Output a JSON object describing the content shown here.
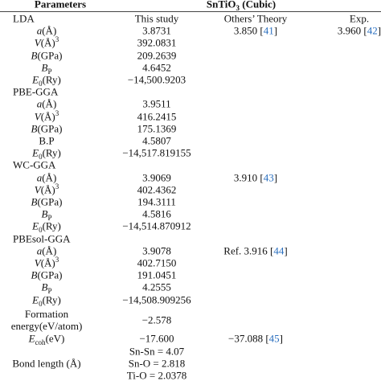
{
  "header": {
    "parameters": "Parameters",
    "compound": [
      {
        "text": "SnTiO"
      },
      {
        "text": "3",
        "format": "sub"
      },
      {
        "text": " (Cubic)"
      }
    ]
  },
  "rows": [
    {
      "kind": "group",
      "label": [
        [
          {
            "text": "LDA"
          }
        ]
      ],
      "study": [
        "This study"
      ],
      "theory": {
        "text": "Others’ Theory"
      },
      "exp": {
        "text": "Exp."
      }
    },
    {
      "label": [
        [
          {
            "text": "a",
            "format": "italic"
          },
          {
            "text": "(Å)"
          }
        ]
      ],
      "study": [
        "3.8731"
      ],
      "theory": {
        "text": "3.850 [",
        "ref": "41",
        "close": "]"
      },
      "exp": {
        "text": "3.960 [",
        "ref": "42",
        "close": "]"
      }
    },
    {
      "label": [
        [
          {
            "text": "V",
            "format": "italic"
          },
          {
            "text": "(Å)"
          },
          {
            "text": "3",
            "format": "sup"
          }
        ]
      ],
      "study": [
        "392.0831"
      ]
    },
    {
      "label": [
        [
          {
            "text": "B",
            "format": "italic"
          },
          {
            "text": "(GPa)"
          }
        ]
      ],
      "study": [
        "209.2639"
      ]
    },
    {
      "label": [
        [
          {
            "text": "B",
            "format": "italic"
          },
          {
            "text": "P",
            "format": "sub"
          }
        ]
      ],
      "study": [
        "4.6452"
      ]
    },
    {
      "label": [
        [
          {
            "text": "E",
            "format": "italic"
          },
          {
            "text": "0",
            "format": "sub"
          },
          {
            "text": "(Ry)"
          }
        ]
      ],
      "study": [
        "−14,500.9203"
      ]
    },
    {
      "kind": "group",
      "label": [
        [
          {
            "text": "PBE-GGA"
          }
        ]
      ]
    },
    {
      "label": [
        [
          {
            "text": "a",
            "format": "italic"
          },
          {
            "text": "(Å)"
          }
        ]
      ],
      "study": [
        "3.9511"
      ]
    },
    {
      "label": [
        [
          {
            "text": "V",
            "format": "italic"
          },
          {
            "text": "(Å)"
          },
          {
            "text": "3",
            "format": "sup"
          }
        ]
      ],
      "study": [
        "416.2415"
      ]
    },
    {
      "label": [
        [
          {
            "text": "B",
            "format": "italic"
          },
          {
            "text": "(GPa)"
          }
        ]
      ],
      "study": [
        "175.1369"
      ]
    },
    {
      "label": [
        [
          {
            "text": "B.P"
          }
        ]
      ],
      "study": [
        "4.5807"
      ]
    },
    {
      "label": [
        [
          {
            "text": "E",
            "format": "italic"
          },
          {
            "text": "0",
            "format": "sub"
          },
          {
            "text": "(Ry)"
          }
        ]
      ],
      "study": [
        "−14,517.819155"
      ]
    },
    {
      "kind": "group",
      "label": [
        [
          {
            "text": "WC-GGA"
          }
        ]
      ]
    },
    {
      "label": [
        [
          {
            "text": "a",
            "format": "italic"
          },
          {
            "text": "(Å)"
          }
        ]
      ],
      "study": [
        "3.9069"
      ],
      "theory": {
        "text": "3.910 [",
        "ref": "43",
        "close": "]"
      }
    },
    {
      "label": [
        [
          {
            "text": "V",
            "format": "italic"
          },
          {
            "text": "(Å)"
          },
          {
            "text": "3",
            "format": "sup"
          }
        ]
      ],
      "study": [
        "402.4362"
      ]
    },
    {
      "label": [
        [
          {
            "text": "B",
            "format": "italic"
          },
          {
            "text": "(GPa)"
          }
        ]
      ],
      "study": [
        "194.3111"
      ]
    },
    {
      "label": [
        [
          {
            "text": "B",
            "format": "italic"
          },
          {
            "text": "P",
            "format": "sub"
          }
        ]
      ],
      "study": [
        "4.5816"
      ]
    },
    {
      "label": [
        [
          {
            "text": "E",
            "format": "italic"
          },
          {
            "text": "0",
            "format": "sub"
          },
          {
            "text": "(Ry)"
          }
        ]
      ],
      "study": [
        "−14,514.870912"
      ]
    },
    {
      "kind": "group",
      "label": [
        [
          {
            "text": "PBEsol-GGA"
          }
        ]
      ]
    },
    {
      "label": [
        [
          {
            "text": "a",
            "format": "italic"
          },
          {
            "text": "(Å)"
          }
        ]
      ],
      "study": [
        "3.9078"
      ],
      "theory": {
        "text": "Ref. 3.916 [",
        "ref": "44",
        "close": "]"
      }
    },
    {
      "label": [
        [
          {
            "text": "V",
            "format": "italic"
          },
          {
            "text": "(Å)"
          },
          {
            "text": "3",
            "format": "sup"
          }
        ]
      ],
      "study": [
        "402.7150"
      ]
    },
    {
      "label": [
        [
          {
            "text": "B",
            "format": "italic"
          },
          {
            "text": "(GPa)"
          }
        ]
      ],
      "study": [
        "191.0451"
      ]
    },
    {
      "label": [
        [
          {
            "text": "B",
            "format": "italic"
          },
          {
            "text": "P",
            "format": "sub"
          }
        ]
      ],
      "study": [
        "4.2555"
      ]
    },
    {
      "label": [
        [
          {
            "text": "E",
            "format": "italic"
          },
          {
            "text": "0",
            "format": "sub"
          },
          {
            "text": "(Ry)"
          }
        ]
      ],
      "study": [
        "−14,508.909256"
      ]
    },
    {
      "label": [
        [
          {
            "text": "Formation"
          }
        ],
        [
          {
            "text": "energy(eV/atom)"
          }
        ]
      ],
      "study": [
        "−2.578"
      ]
    },
    {
      "label": [
        [
          {
            "text": "E",
            "format": "italic"
          },
          {
            "text": "coh",
            "format": "sub"
          },
          {
            "text": "(eV)"
          }
        ]
      ],
      "study": [
        "−17.600"
      ],
      "theory": {
        "text": "−37.088 [",
        "ref": "45",
        "close": "]"
      }
    },
    {
      "label": [
        [
          {
            "text": "Bond length (Å)"
          }
        ]
      ],
      "study": [
        "Sn-Sn = 4.07",
        "Sn-O = 2.818",
        "Ti-O = 2.0378"
      ]
    }
  ]
}
